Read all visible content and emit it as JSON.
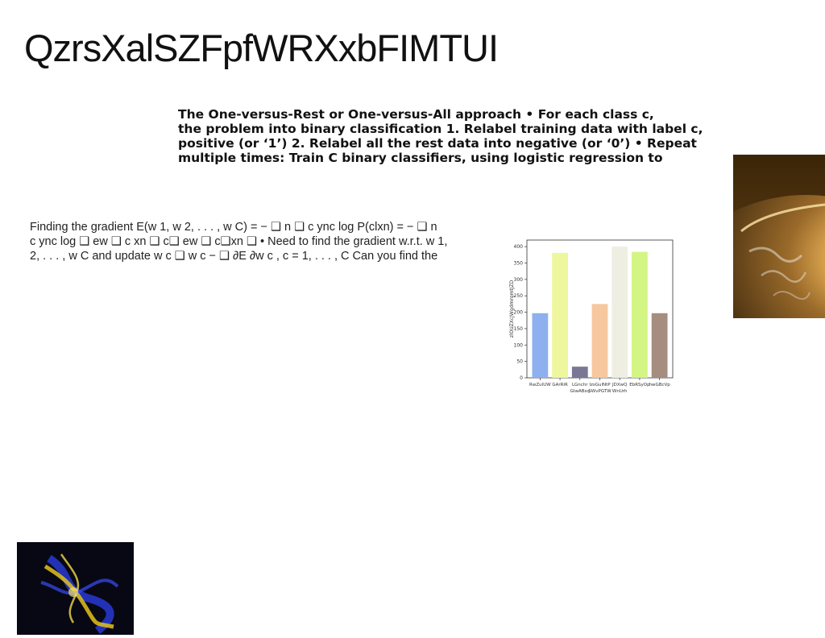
{
  "page": {
    "title": "QzrsXalSZFpfWRXxbFIMTUI"
  },
  "bold_paragraph": {
    "lines": [
      "The One-versus-Rest or One-versus-All approach • For each class c,",
      "the problem into binary classification 1. Relabel training data with label c,",
      "positive (or ‘1’) 2. Relabel all the rest data into negative (or ‘0’) • Repeat",
      "multiple times: Train C binary classifiers, using logistic regression to"
    ]
  },
  "body_paragraph": {
    "lines": [
      "Finding the gradient E(w 1, w 2, . . . , w C) = − ❑ n ❑ c ync log P(clxn) = − ❑ n",
      "c ync log ❑ ew ❑ c xn ❑ c❑ ew ❑ c❑xn ❑ • Need to find the gradient w.r.t. w 1,",
      "2, . . . , w C and update w c ❑ w c − ❑ ∂E ∂w c , c = 1, . . . , C Can you find the"
    ]
  },
  "chart_data": {
    "type": "bar",
    "categories": [
      "RwZuIUW",
      "GArRiR",
      "LGnchr",
      "IzsGulNtP",
      "JDXwQ",
      "EbRSyOp",
      "hwGBcVp"
    ],
    "category_line2": [
      "",
      "",
      "GIwABsq",
      "SWvPGTW",
      "WnUrh",
      "",
      ""
    ],
    "values": [
      197,
      381,
      34,
      225,
      400,
      384,
      197
    ],
    "colors": [
      "#8fb0ee",
      "#eef79e",
      "#7a7796",
      "#f7c79f",
      "#eeeee2",
      "#d3f584",
      "#a58d7f"
    ],
    "ylabel": "zlOUZXcJWgdmrqmtJZD",
    "ylim": [
      0,
      420
    ],
    "yticks": [
      0,
      50,
      100,
      150,
      200,
      250,
      300,
      350,
      400
    ],
    "grid": false
  },
  "images": {
    "earth_photo": "earth-from-space-photo",
    "fractal_photo": "blue-yellow-fractal-photo"
  }
}
